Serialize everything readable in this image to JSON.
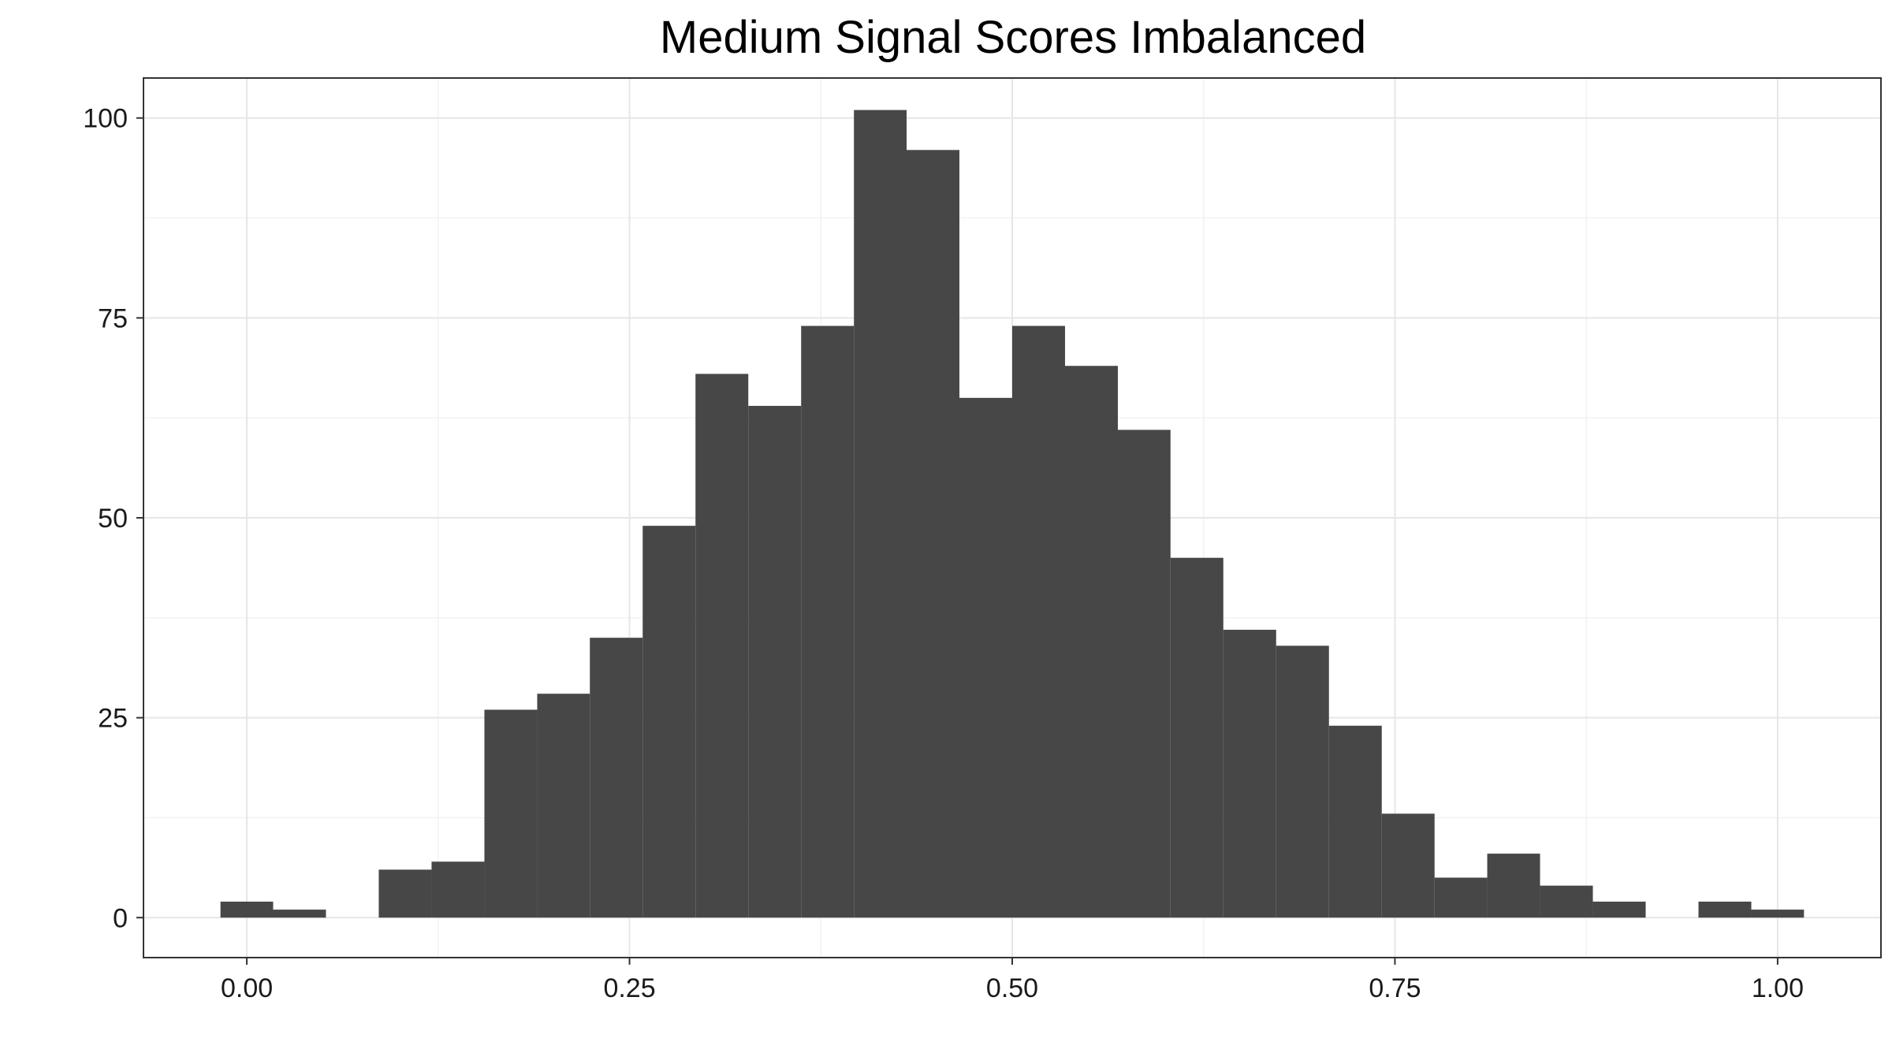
{
  "chart_data": {
    "type": "bar",
    "title": "Medium Signal Scores Imbalanced",
    "xlabel": "",
    "ylabel": "",
    "xlim": [
      -0.0675,
      1.0675
    ],
    "ylim": [
      -5,
      105
    ],
    "x_ticks": [
      0.0,
      0.25,
      0.5,
      0.75,
      1.0
    ],
    "x_tick_labels": [
      "0.00",
      "0.25",
      "0.50",
      "0.75",
      "1.00"
    ],
    "y_ticks": [
      0,
      25,
      50,
      75,
      100
    ],
    "y_tick_labels": [
      "0",
      "25",
      "50",
      "75",
      "100"
    ],
    "grid": true,
    "bar_color": "#474747",
    "bins": [
      {
        "start": -0.0172,
        "end": 0.0172,
        "count": 2
      },
      {
        "start": 0.0172,
        "end": 0.0517,
        "count": 1
      },
      {
        "start": 0.0517,
        "end": 0.0862,
        "count": 0
      },
      {
        "start": 0.0862,
        "end": 0.1207,
        "count": 6
      },
      {
        "start": 0.1207,
        "end": 0.1552,
        "count": 7
      },
      {
        "start": 0.1552,
        "end": 0.1897,
        "count": 26
      },
      {
        "start": 0.1897,
        "end": 0.2241,
        "count": 28
      },
      {
        "start": 0.2241,
        "end": 0.2586,
        "count": 35
      },
      {
        "start": 0.2586,
        "end": 0.2931,
        "count": 49
      },
      {
        "start": 0.2931,
        "end": 0.3276,
        "count": 68
      },
      {
        "start": 0.3276,
        "end": 0.3621,
        "count": 64
      },
      {
        "start": 0.3621,
        "end": 0.3966,
        "count": 74
      },
      {
        "start": 0.3966,
        "end": 0.431,
        "count": 101
      },
      {
        "start": 0.431,
        "end": 0.4655,
        "count": 96
      },
      {
        "start": 0.4655,
        "end": 0.5,
        "count": 65
      },
      {
        "start": 0.5,
        "end": 0.5345,
        "count": 74
      },
      {
        "start": 0.5345,
        "end": 0.569,
        "count": 69
      },
      {
        "start": 0.569,
        "end": 0.6034,
        "count": 61
      },
      {
        "start": 0.6034,
        "end": 0.6379,
        "count": 45
      },
      {
        "start": 0.6379,
        "end": 0.6724,
        "count": 36
      },
      {
        "start": 0.6724,
        "end": 0.7069,
        "count": 34
      },
      {
        "start": 0.7069,
        "end": 0.7414,
        "count": 24
      },
      {
        "start": 0.7414,
        "end": 0.7759,
        "count": 13
      },
      {
        "start": 0.7759,
        "end": 0.8103,
        "count": 5
      },
      {
        "start": 0.8103,
        "end": 0.8448,
        "count": 8
      },
      {
        "start": 0.8448,
        "end": 0.8793,
        "count": 4
      },
      {
        "start": 0.8793,
        "end": 0.9138,
        "count": 2
      },
      {
        "start": 0.9138,
        "end": 0.9483,
        "count": 0
      },
      {
        "start": 0.9483,
        "end": 0.9828,
        "count": 2
      },
      {
        "start": 0.9828,
        "end": 1.0172,
        "count": 1
      }
    ]
  }
}
